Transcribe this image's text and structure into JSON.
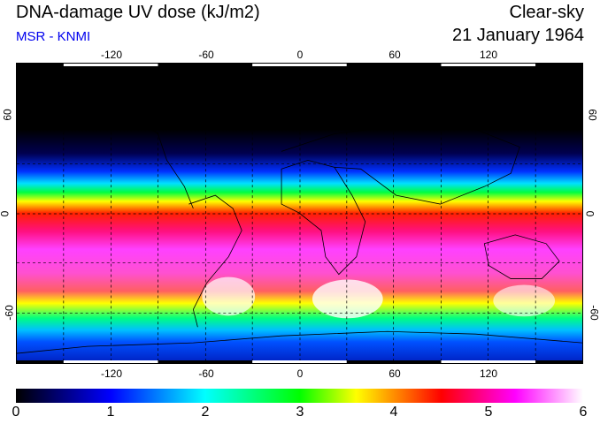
{
  "header": {
    "title": "DNA-damage UV dose (kJ/m2)",
    "source": "MSR - KNMI",
    "sky_condition": "Clear-sky",
    "date": "21 January 1964"
  },
  "map": {
    "lon_ticks": [
      "-120",
      "-60",
      "0",
      "60",
      "120"
    ],
    "lat_ticks_left": [
      "60",
      "0",
      "-60"
    ],
    "lat_ticks_right": [
      "60",
      "0",
      "-60"
    ],
    "projection": "equirectangular, 180W-180E, 90S-90N",
    "grid": "dashed 30° graticule"
  },
  "colorbar": {
    "labels": [
      "0",
      "1",
      "2",
      "3",
      "4",
      "5",
      "6"
    ],
    "colors": [
      "#000000",
      "#0000ff",
      "#00ffff",
      "#00ff00",
      "#ffff00",
      "#ff0000",
      "#ff00ff",
      "#ffffff"
    ]
  }
}
